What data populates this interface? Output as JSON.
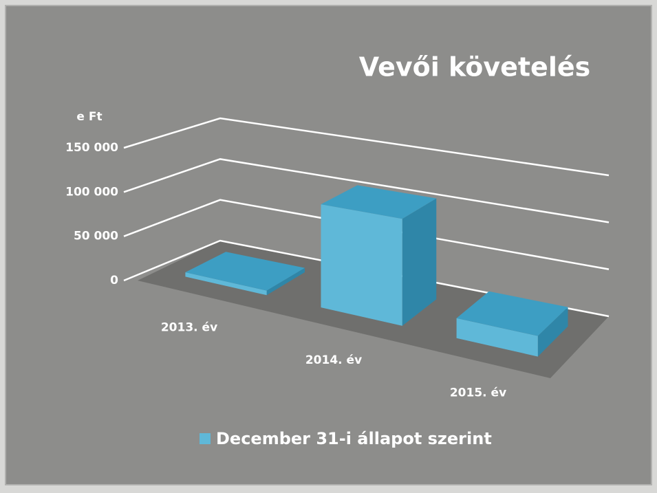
{
  "chart_data": {
    "type": "bar3d",
    "title": "Vevői követelés",
    "y_label": "e Ft",
    "categories": [
      "2013. év",
      "2014. év",
      "2015. év"
    ],
    "series": [
      {
        "name": "December 31-i állapot szerint",
        "color": "#5fb8d8",
        "values": [
          5000,
          110000,
          20000
        ]
      }
    ],
    "ylim": [
      0,
      150000
    ],
    "yticks": [
      0,
      {
        "value": 50000,
        "label": "50 000"
      },
      {
        "value": 100000,
        "label": "100 000"
      },
      {
        "value": 150000,
        "label": "150 000"
      }
    ],
    "grid": true,
    "legend": "bottom"
  }
}
